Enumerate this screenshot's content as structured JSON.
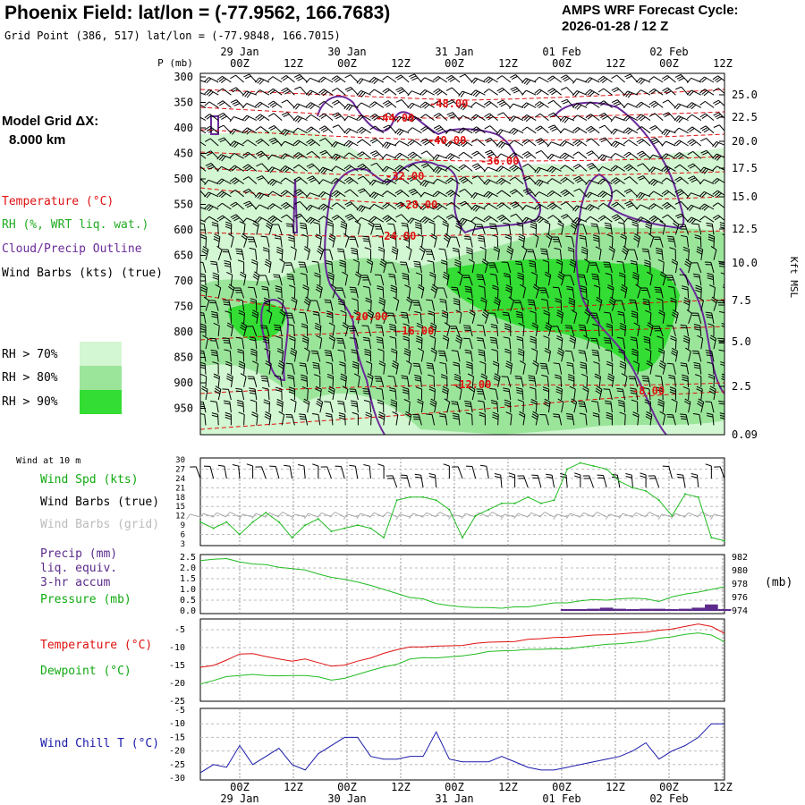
{
  "header": {
    "title": "Phoenix Field:  lat/lon = (-77.9562, 166.7683)",
    "grid_point": "Grid Point (386, 517) lat/lon = (-77.9848, 166.7015)",
    "cycle_line1": "AMPS WRF Forecast Cycle:",
    "cycle_line2": "2026-01-28 / 12  Z"
  },
  "left_panel": {
    "model_grid_line1": "Model Grid ΔX:",
    "model_grid_line2": "8.000 km",
    "legend": [
      {
        "label": "Temperature (°C)",
        "color": "#e01010"
      },
      {
        "label": "RH (%, WRT liq. wat.)",
        "color": "#22aa22"
      },
      {
        "label": "Cloud/Precip Outline",
        "color": "#6a2a9a"
      },
      {
        "label": "Wind Barbs (kts) (true)",
        "color": "#000000"
      }
    ],
    "rh_scale": [
      {
        "label": "RH > 70%",
        "color": "#d2f7d2"
      },
      {
        "label": "RH > 80%",
        "color": "#9be59b"
      },
      {
        "label": "RH > 90%",
        "color": "#33dd33"
      }
    ]
  },
  "time_axis": {
    "top_dates": [
      "29 Jan",
      "30 Jan",
      "31 Jan",
      "01 Feb",
      "02 Feb"
    ],
    "hours": [
      "00Z",
      "12Z",
      "00Z",
      "12Z",
      "00Z",
      "12Z",
      "00Z",
      "12Z",
      "00Z",
      "12Z"
    ],
    "bottom_dates": [
      "29 Jan",
      "30 Jan",
      "31 Jan",
      "01 Feb",
      "02 Feb"
    ]
  },
  "sounding": {
    "p_unit": "P (mb)",
    "p_levels": [
      "300",
      "350",
      "400",
      "450",
      "500",
      "550",
      "600",
      "650",
      "700",
      "750",
      "800",
      "850",
      "900",
      "950"
    ],
    "kft_ticks": [
      "25.0",
      "22.5",
      "20.0",
      "17.5",
      "15.0",
      "12.5",
      "10.0",
      "7.5",
      "5.0",
      "2.5",
      "0.09"
    ],
    "kft_label": "Kft MSL",
    "temp_labels": [
      "-48.00",
      "-44.00",
      "-40.00",
      "-36.00",
      "-32.00",
      "-28.00",
      "-24.00",
      "-20.00",
      "-16.00",
      "-12.00",
      "-8.00"
    ]
  },
  "panels": {
    "wind": {
      "header": "Wind at 10 m",
      "labels": [
        {
          "text": "Wind Spd (kts)",
          "color": "#11aa11"
        },
        {
          "text": "Wind Barbs (true)",
          "color": "#000000"
        },
        {
          "text": "Wind Barbs (grid)",
          "color": "#bbbbbb"
        }
      ],
      "y_ticks": [
        "30",
        "27",
        "24",
        "21",
        "18",
        "15",
        "12",
        "9",
        "6",
        "3"
      ]
    },
    "precip": {
      "labels": [
        {
          "text": "Precip (mm)",
          "color": "#5b2a8a"
        },
        {
          "text": "liq. equiv.",
          "color": "#5b2a8a"
        },
        {
          "text": "3-hr accum",
          "color": "#5b2a8a"
        },
        {
          "text": "Pressure (mb)",
          "color": "#11aa11"
        }
      ],
      "left_ticks": [
        "2.5",
        "2.0",
        "1.5",
        "1.0",
        "0.5",
        "0.0"
      ],
      "right_ticks": [
        "982",
        "980",
        "978",
        "976",
        "974"
      ],
      "right_unit": "(mb)"
    },
    "temp": {
      "labels": [
        {
          "text": "Temperature (°C)",
          "color": "#e01010"
        },
        {
          "text": "Dewpoint (°C)",
          "color": "#11aa11"
        }
      ],
      "y_ticks": [
        "-5",
        "-10",
        "-15",
        "-20",
        "-25"
      ]
    },
    "chill": {
      "labels": [
        {
          "text": "Wind Chill T (°C)",
          "color": "#1a1aaa"
        }
      ],
      "y_ticks": [
        "-5",
        "-10",
        "-15",
        "-20",
        "-25",
        "-30"
      ]
    }
  },
  "chart_data": [
    {
      "type": "line",
      "title": "Wind at 10 m",
      "x": [
        "28 Jan 12Z",
        "28 Jan 15Z",
        "28 Jan 18Z",
        "28 Jan 21Z",
        "29 Jan 00Z",
        "29 Jan 03Z",
        "29 Jan 06Z",
        "29 Jan 09Z",
        "29 Jan 12Z",
        "29 Jan 15Z",
        "29 Jan 18Z",
        "29 Jan 21Z",
        "30 Jan 00Z",
        "30 Jan 03Z",
        "30 Jan 06Z",
        "30 Jan 09Z",
        "30 Jan 12Z",
        "30 Jan 15Z",
        "30 Jan 18Z",
        "30 Jan 21Z",
        "31 Jan 00Z",
        "31 Jan 03Z",
        "31 Jan 06Z",
        "31 Jan 09Z",
        "31 Jan 12Z",
        "31 Jan 15Z",
        "31 Jan 18Z",
        "31 Jan 21Z",
        "01 Feb 00Z",
        "01 Feb 03Z",
        "01 Feb 06Z",
        "01 Feb 09Z",
        "01 Feb 12Z",
        "01 Feb 15Z",
        "01 Feb 18Z",
        "01 Feb 21Z",
        "02 Feb 00Z",
        "02 Feb 03Z",
        "02 Feb 06Z",
        "02 Feb 09Z",
        "02 Feb 12Z"
      ],
      "series": [
        {
          "name": "Wind Spd (kts)",
          "values": [
            10,
            8,
            10,
            6,
            10,
            13,
            10,
            5,
            9,
            11,
            7,
            8,
            9,
            8,
            5,
            17,
            18,
            18,
            17,
            14,
            5,
            12,
            14,
            16,
            16,
            18,
            16,
            17,
            27,
            29,
            28,
            27,
            23,
            21,
            20,
            17,
            12,
            19,
            18,
            5,
            4
          ]
        }
      ],
      "ylim": [
        3,
        30
      ]
    },
    {
      "type": "line",
      "title": "Precip / Pressure",
      "series": [
        {
          "name": "Pressure (mb)",
          "values": [
            981.5,
            981.7,
            981.8,
            981.3,
            981.0,
            980.9,
            980.5,
            980.3,
            980.1,
            979.5,
            979.0,
            978.7,
            978.3,
            977.8,
            977.2,
            976.6,
            976.0,
            975.8,
            975.1,
            974.8,
            974.6,
            974.5,
            974.5,
            974.4,
            974.6,
            974.6,
            974.9,
            975.2,
            975.2,
            975.5,
            975.7,
            975.6,
            975.8,
            975.9,
            975.8,
            975.4,
            976.1,
            976.5,
            976.8,
            977.2,
            977.6
          ]
        },
        {
          "name": "Precip (mm)",
          "values": [
            0,
            0,
            0,
            0,
            0,
            0,
            0,
            0,
            0,
            0,
            0,
            0,
            0,
            0,
            0,
            0,
            0,
            0,
            0,
            0,
            0,
            0,
            0,
            0,
            0,
            0,
            0,
            0,
            0.05,
            0.08,
            0.1,
            0.15,
            0.1,
            0.08,
            0.1,
            0.1,
            0.05,
            0.1,
            0.15,
            0.3,
            0.05
          ]
        }
      ],
      "ylim_left": [
        0,
        2.5
      ],
      "ylim_right": [
        974,
        982
      ]
    },
    {
      "type": "line",
      "title": "Temperature / Dewpoint",
      "series": [
        {
          "name": "Temperature (°C)",
          "values": [
            -15.5,
            -15,
            -13.5,
            -11.8,
            -11.7,
            -12.5,
            -13.2,
            -13.8,
            -13.2,
            -14.2,
            -15.2,
            -14.9,
            -13.8,
            -12.9,
            -11.6,
            -10.6,
            -9.8,
            -9.8,
            -9.6,
            -9.5,
            -9.4,
            -8.8,
            -8.5,
            -8.4,
            -8.3,
            -7.7,
            -7.5,
            -7.2,
            -7.1,
            -6.8,
            -6.5,
            -6.4,
            -6.2,
            -5.9,
            -5.7,
            -5.2,
            -4.8,
            -4.1,
            -3.4,
            -4.1,
            -6.0
          ]
        },
        {
          "name": "Dewpoint (°C)",
          "values": [
            -20.2,
            -19.2,
            -18.1,
            -17.8,
            -17.5,
            -17.8,
            -17.9,
            -17.8,
            -17.8,
            -18.2,
            -19.1,
            -18.6,
            -17.5,
            -16.4,
            -15.4,
            -14.7,
            -13.2,
            -12.8,
            -12.9,
            -12.6,
            -12.3,
            -11.8,
            -11.1,
            -10.9,
            -10.8,
            -10.5,
            -10.5,
            -10.3,
            -10.4,
            -9.9,
            -9.5,
            -9.1,
            -8.9,
            -8.6,
            -8.2,
            -7.4,
            -7.0,
            -6.3,
            -5.9,
            -6.5,
            -8.4
          ]
        }
      ],
      "ylim": [
        -25,
        -2
      ]
    },
    {
      "type": "line",
      "title": "Wind Chill T",
      "series": [
        {
          "name": "Wind Chill T (°C)",
          "values": [
            -28,
            -25,
            -26,
            -18,
            -25,
            -22,
            -19,
            -25,
            -27,
            -21,
            -18,
            -15,
            -15,
            -22,
            -23,
            -23,
            -22,
            -22,
            -13,
            -23,
            -24,
            -24,
            -24,
            -22,
            -24,
            -26,
            -27,
            -27,
            -26,
            -25,
            -24,
            -23,
            -22,
            -20,
            -17,
            -23,
            -20,
            -18,
            -15,
            -10,
            -10
          ]
        }
      ],
      "ylim": [
        -30,
        -5
      ]
    }
  ]
}
